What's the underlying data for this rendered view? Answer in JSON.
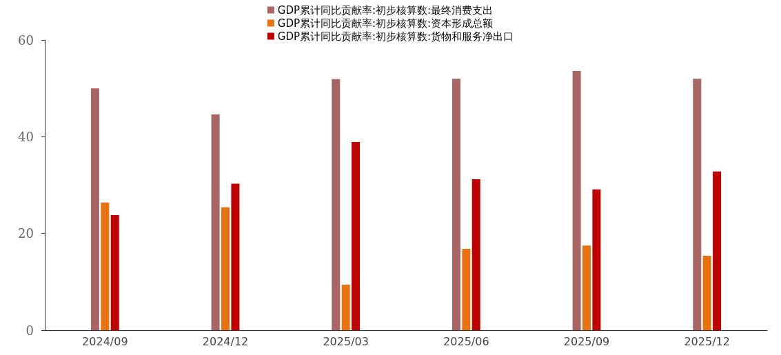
{
  "chart_data": {
    "type": "bar",
    "categories": [
      "2024/09",
      "2024/12",
      "2025/03",
      "2025/06",
      "2025/09",
      "2025/12"
    ],
    "series": [
      {
        "name": "GDP累计同比贡献率:初步核算数:最终消费支出",
        "color": "#a96464",
        "values": [
          50.0,
          44.6,
          51.9,
          52.0,
          53.6,
          52.0
        ]
      },
      {
        "name": "GDP累计同比贡献率:初步核算数:资本形成总额",
        "color": "#e8730e",
        "values": [
          26.4,
          25.4,
          9.4,
          16.8,
          17.5,
          15.4
        ]
      },
      {
        "name": "GDP累计同比贡献率:初步核算数:货物和服务净出口",
        "color": "#c00000",
        "values": [
          23.8,
          30.3,
          38.9,
          31.2,
          29.1,
          32.8
        ]
      }
    ],
    "ylim": [
      0,
      60
    ],
    "yticks": [
      0,
      20,
      40,
      60
    ],
    "grid": false,
    "legend": "top"
  }
}
